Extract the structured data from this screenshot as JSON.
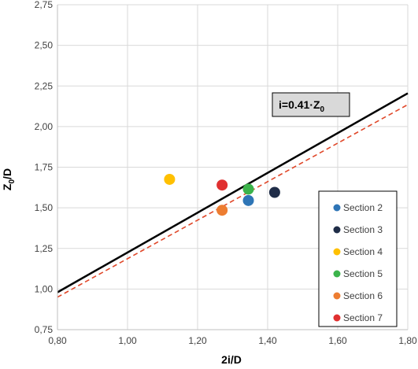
{
  "chart_data": {
    "type": "scatter",
    "title": "",
    "xlabel": "2i/D",
    "ylabel": "Z",
    "ylabel_sub": "0",
    "ylabel_suffix": "/D",
    "xlim": [
      0.8,
      1.8
    ],
    "ylim": [
      0.75,
      2.75
    ],
    "x_ticks": [
      "0,80",
      "1,00",
      "1,20",
      "1,40",
      "1,60",
      "1,80"
    ],
    "y_ticks": [
      "0,75",
      "1,00",
      "1,25",
      "1,50",
      "1,75",
      "2,00",
      "2,25",
      "2,50",
      "2,75"
    ],
    "grid": true,
    "legend_position": "bottom-right",
    "series": [
      {
        "name": "Section 2",
        "color": "#2e75b6",
        "x": 1.345,
        "y": 1.545
      },
      {
        "name": "Section 3",
        "color": "#1f2d48",
        "x": 1.42,
        "y": 1.595
      },
      {
        "name": "Section 4",
        "color": "#ffc000",
        "x": 1.12,
        "y": 1.675
      },
      {
        "name": "Section 5",
        "color": "#3cb44b",
        "x": 1.345,
        "y": 1.615
      },
      {
        "name": "Section 6",
        "color": "#ed7d31",
        "x": 1.27,
        "y": 1.485
      },
      {
        "name": "Section 7",
        "color": "#e03030",
        "x": 1.27,
        "y": 1.64
      }
    ],
    "lines": [
      {
        "style": "solid",
        "color": "#000000",
        "x": [
          0.8,
          1.8
        ],
        "y": [
          0.98,
          2.205
        ]
      },
      {
        "style": "dashed",
        "color": "#e0482a",
        "x": [
          0.8,
          1.8
        ],
        "y": [
          0.95,
          2.135
        ]
      }
    ],
    "annotation": {
      "text": "i=0.41·Z",
      "sub": "0"
    }
  }
}
